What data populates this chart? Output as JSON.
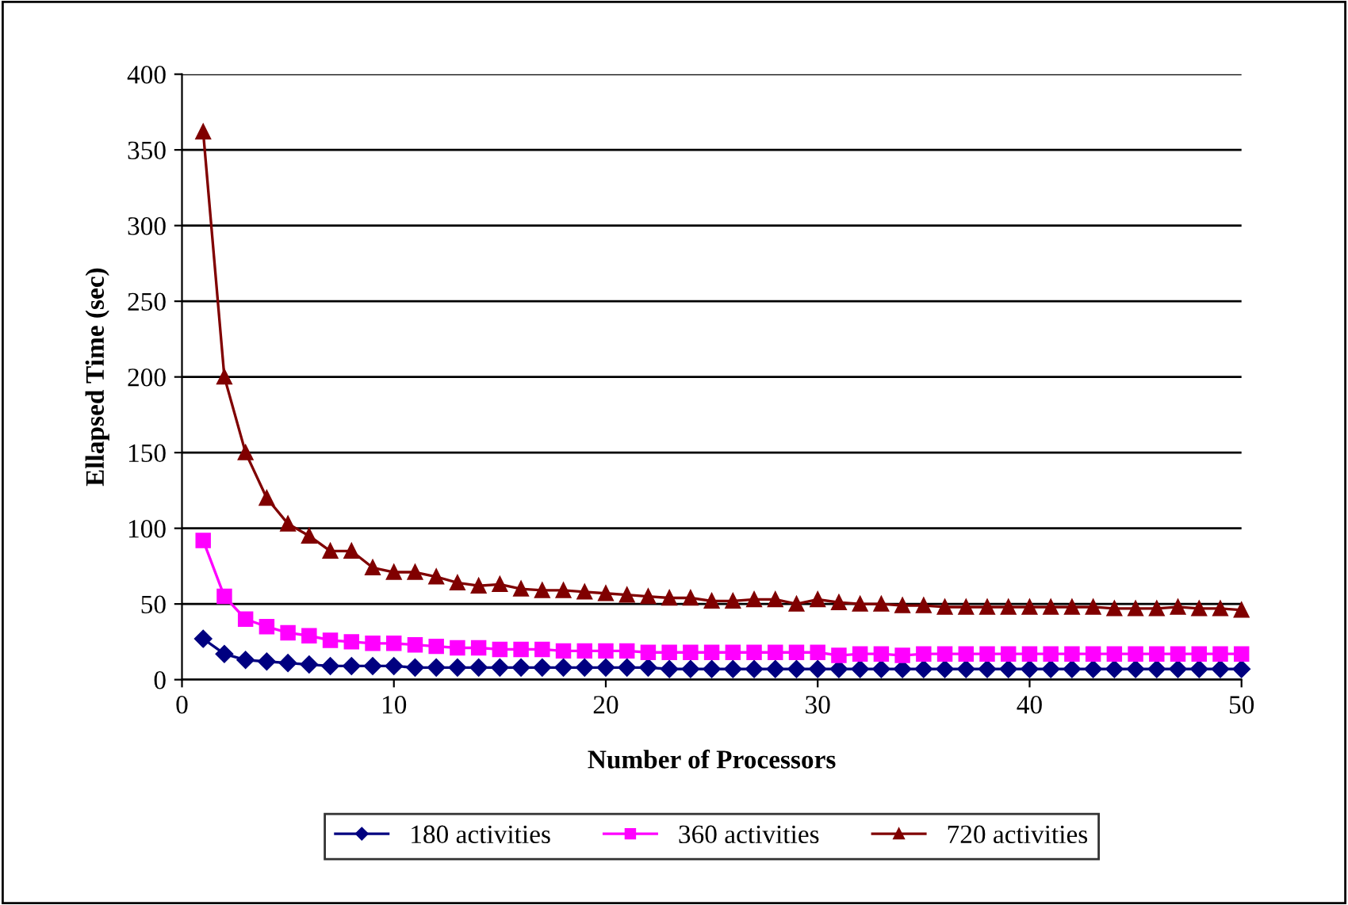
{
  "chart_data": {
    "type": "line",
    "xlabel": "Number of Processors",
    "ylabel": "Ellapsed Time (sec)",
    "x": [
      1,
      2,
      3,
      4,
      5,
      6,
      7,
      8,
      9,
      10,
      11,
      12,
      13,
      14,
      15,
      16,
      17,
      18,
      19,
      20,
      21,
      22,
      23,
      24,
      25,
      26,
      27,
      28,
      29,
      30,
      31,
      32,
      33,
      34,
      35,
      36,
      37,
      38,
      39,
      40,
      41,
      42,
      43,
      44,
      45,
      46,
      47,
      48,
      49,
      50
    ],
    "series": [
      {
        "name": "180 activities",
        "color": "#000080",
        "marker": "diamond",
        "values": [
          27,
          17,
          13,
          12,
          11,
          10,
          9,
          9,
          9,
          9,
          8,
          8,
          8,
          8,
          8,
          8,
          8,
          8,
          8,
          8,
          8,
          8,
          7,
          7,
          7,
          7,
          7,
          7,
          7,
          7,
          7,
          7,
          7,
          7,
          7,
          7,
          7,
          7,
          7,
          7,
          7,
          7,
          7,
          7,
          7,
          7,
          7,
          7,
          7,
          7
        ]
      },
      {
        "name": "360 activities",
        "color": "#ff00ff",
        "marker": "square",
        "values": [
          92,
          55,
          40,
          35,
          31,
          29,
          26,
          25,
          24,
          24,
          23,
          22,
          21,
          21,
          20,
          20,
          20,
          19,
          19,
          19,
          19,
          18,
          18,
          18,
          18,
          18,
          18,
          18,
          18,
          18,
          16,
          17,
          17,
          16,
          17,
          17,
          17,
          17,
          17,
          17,
          17,
          17,
          17,
          17,
          17,
          17,
          17,
          17,
          17,
          17
        ]
      },
      {
        "name": "720 activities",
        "color": "#800000",
        "marker": "triangle",
        "values": [
          362,
          200,
          150,
          120,
          103,
          95,
          85,
          85,
          74,
          71,
          71,
          68,
          64,
          62,
          63,
          60,
          59,
          59,
          58,
          57,
          56,
          55,
          54,
          54,
          52,
          52,
          53,
          53,
          50,
          53,
          51,
          50,
          50,
          49,
          49,
          48,
          48,
          48,
          48,
          48,
          48,
          48,
          48,
          47,
          47,
          47,
          48,
          47,
          47,
          46
        ]
      }
    ],
    "xlim": [
      0,
      50
    ],
    "xticks": [
      0,
      10,
      20,
      30,
      40,
      50
    ],
    "ylim": [
      0,
      400
    ],
    "yticks": [
      0,
      50,
      100,
      150,
      200,
      250,
      300,
      350,
      400
    ],
    "grid": "y",
    "legend": "bottom",
    "line_style": "solid"
  }
}
